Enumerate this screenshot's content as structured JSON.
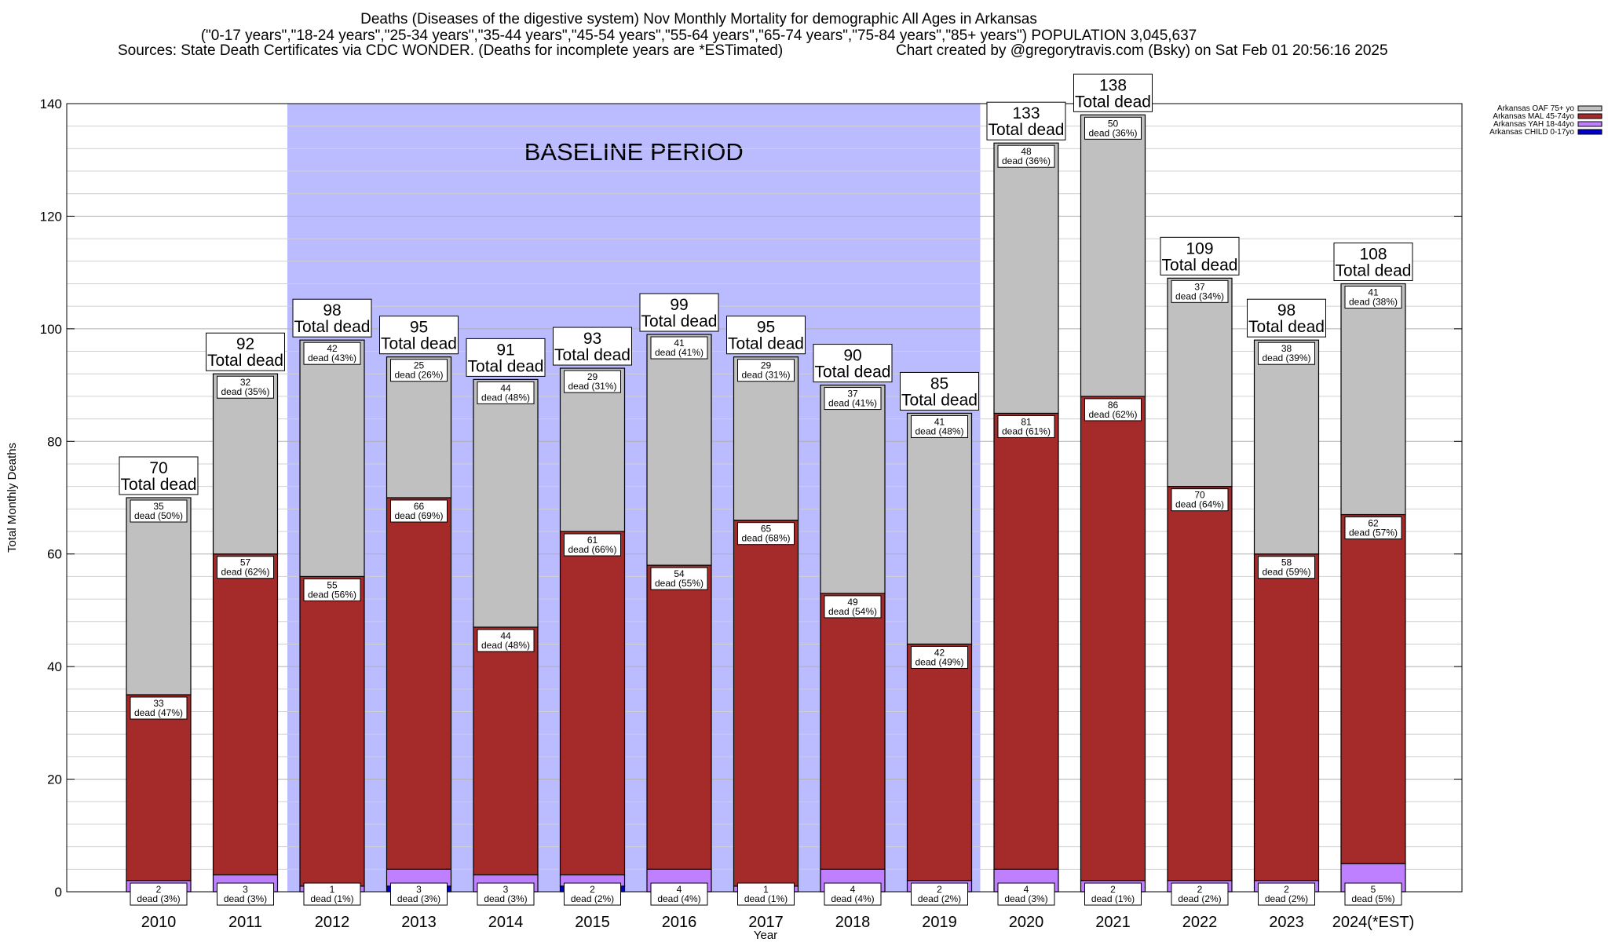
{
  "header": {
    "line1": "Deaths (Diseases of the digestive system) Nov Monthly Mortality for demographic All Ages in Arkansas",
    "line2": "(\"0-17 years\",\"18-24 years\",\"25-34 years\",\"35-44 years\",\"45-54 years\",\"55-64 years\",\"65-74 years\",\"75-84 years\",\"85+ years\") POPULATION 3,045,637",
    "line3_left": "Sources: State Death Certificates via CDC WONDER. (Deaths for incomplete years are *ESTimated)",
    "line3_right": "Chart created by @gregorytravis.com (Bsky) on Sat Feb 01 20:56:16 2025"
  },
  "chart_data": {
    "type": "bar",
    "stacked": true,
    "categories": [
      "2010",
      "2011",
      "2012",
      "2013",
      "2014",
      "2015",
      "2016",
      "2017",
      "2018",
      "2019",
      "2020",
      "2021",
      "2022",
      "2023",
      "2024(*EST)"
    ],
    "xlabel": "Year",
    "ylabel": "Total Monthly Deaths",
    "ylim": [
      0,
      140
    ],
    "yticks": [
      0,
      20,
      40,
      60,
      80,
      100,
      120,
      140
    ],
    "grid": true,
    "legend_position": "top-right",
    "baseline_label": "BASELINE PERIOD",
    "baseline_range": [
      "2012",
      "2019"
    ],
    "series": [
      {
        "name": "Arkansas CHILD 0-17yo",
        "color": "#0000cc",
        "values": [
          0,
          0,
          0,
          1,
          0,
          1,
          0,
          0,
          0,
          0,
          0,
          0,
          0,
          0,
          0
        ]
      },
      {
        "name": "Arkansas YAH 18-44yo",
        "color": "#bf80ff",
        "values": [
          2,
          3,
          1,
          3,
          3,
          2,
          4,
          1,
          4,
          2,
          4,
          2,
          2,
          2,
          5
        ],
        "pct": [
          "3%",
          "3%",
          "1%",
          "3%",
          "3%",
          "2%",
          "4%",
          "1%",
          "4%",
          "2%",
          "3%",
          "1%",
          "2%",
          "2%",
          "5%"
        ]
      },
      {
        "name": "Arkansas MAL 45-74yo",
        "color": "#a52a2a",
        "values": [
          33,
          57,
          55,
          66,
          44,
          61,
          54,
          65,
          49,
          42,
          81,
          86,
          70,
          58,
          62
        ],
        "pct": [
          "47%",
          "62%",
          "56%",
          "69%",
          "48%",
          "66%",
          "55%",
          "68%",
          "54%",
          "49%",
          "61%",
          "62%",
          "64%",
          "59%",
          "57%"
        ]
      },
      {
        "name": "Arkansas OAF 75+ yo",
        "color": "#c0c0c0",
        "values": [
          35,
          32,
          42,
          25,
          44,
          29,
          41,
          29,
          37,
          41,
          48,
          50,
          37,
          38,
          41
        ],
        "pct": [
          "50%",
          "35%",
          "43%",
          "26%",
          "48%",
          "31%",
          "41%",
          "31%",
          "41%",
          "48%",
          "36%",
          "36%",
          "34%",
          "39%",
          "38%"
        ]
      }
    ],
    "totals": [
      70,
      92,
      98,
      95,
      91,
      93,
      99,
      95,
      90,
      85,
      133,
      138,
      109,
      98,
      108
    ],
    "total_label": "Total dead",
    "dead_word": "dead"
  }
}
